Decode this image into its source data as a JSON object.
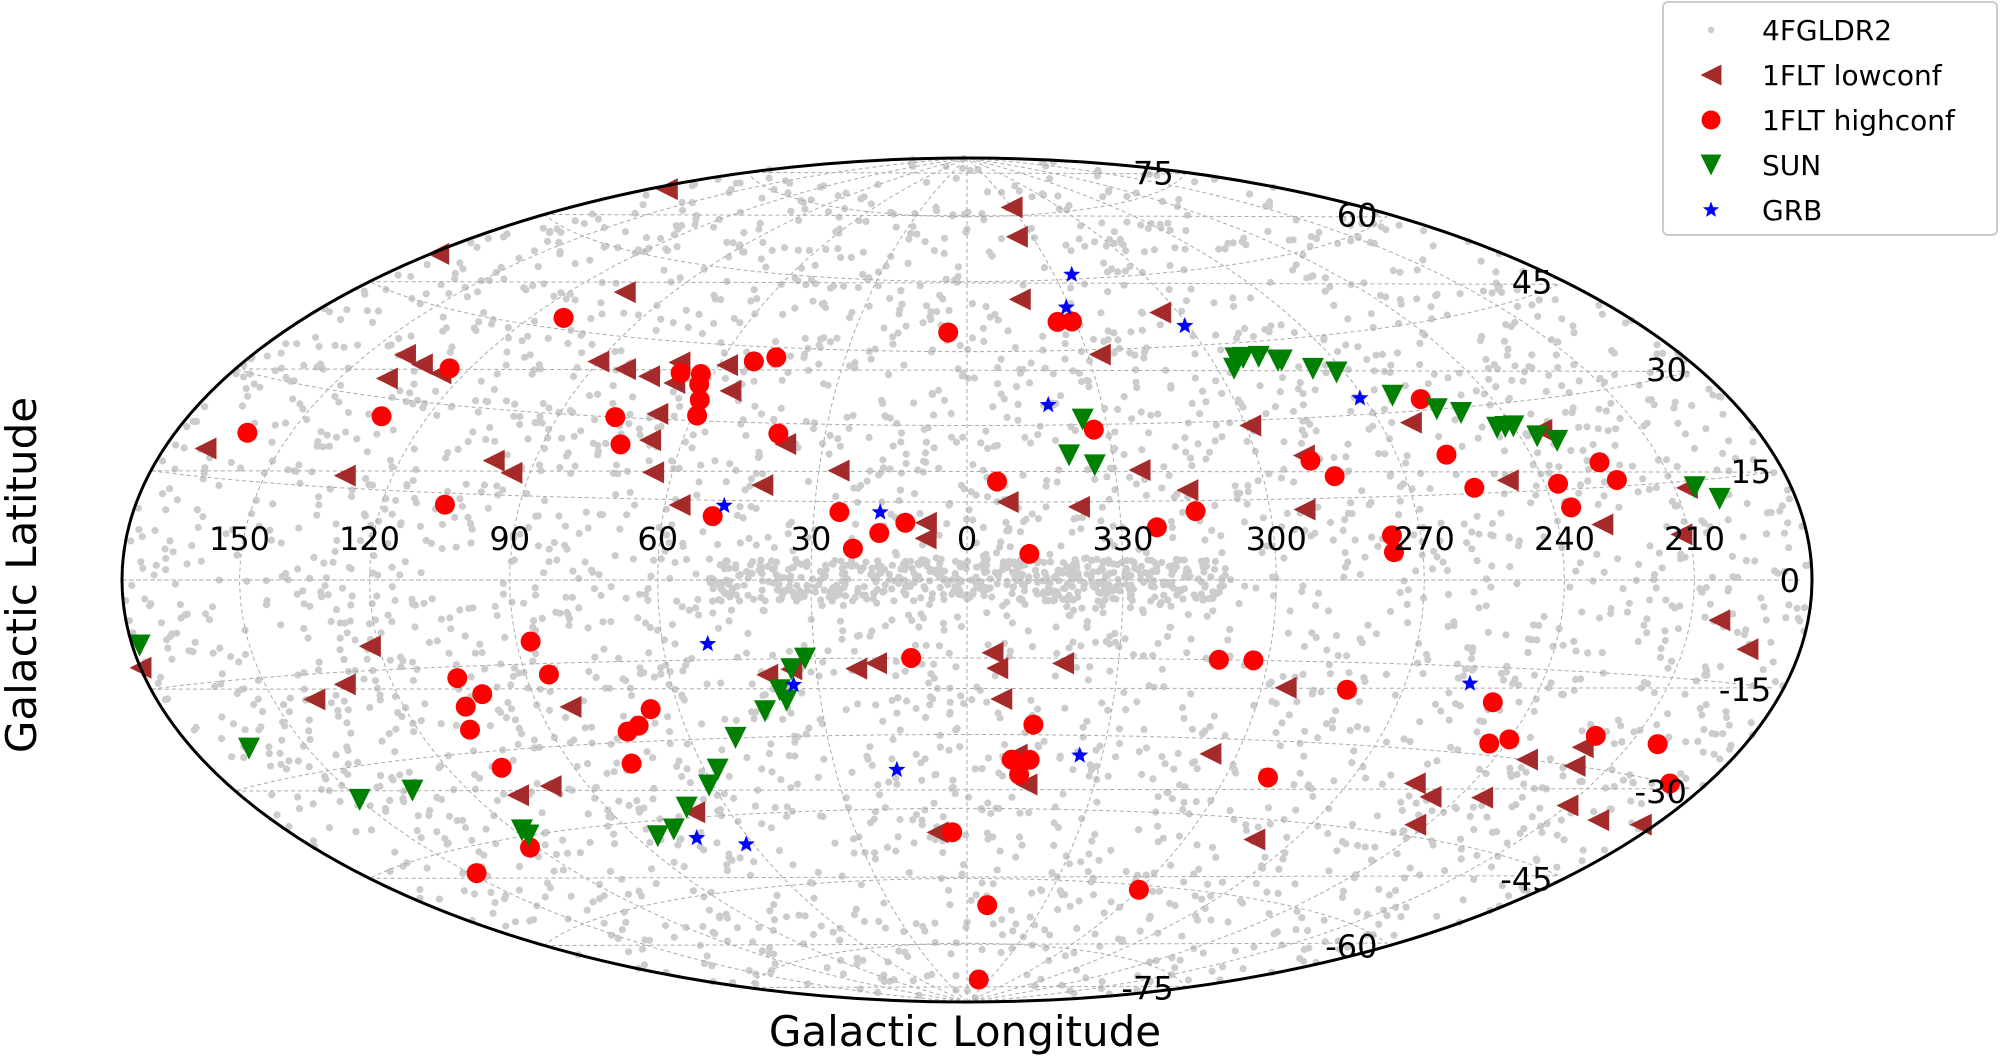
{
  "chart_data": {
    "type": "scatter",
    "projection": "aitoff-hammer",
    "xlabel": "Galactic Longitude",
    "ylabel": "Galactic Latitude",
    "x_ticks": [
      150,
      120,
      90,
      60,
      30,
      0,
      330,
      300,
      270,
      240,
      210
    ],
    "y_ticks": [
      -75,
      -60,
      -45,
      -30,
      -15,
      0,
      15,
      30,
      45,
      60,
      75
    ],
    "xlim": [
      180,
      -180
    ],
    "ylim": [
      -90,
      90
    ],
    "grid": true,
    "legend_position": "top-right",
    "series": [
      {
        "name": "4FGLDR2",
        "marker": "dot",
        "color": "#cccccc",
        "note_density": "uniform background",
        "points": [
          [
            174,
            71
          ],
          [
            150,
            50
          ],
          [
            131,
            43
          ],
          [
            123,
            32
          ],
          [
            110,
            21
          ],
          [
            100,
            29
          ],
          [
            90,
            8
          ],
          [
            79,
            25
          ],
          [
            68,
            31
          ],
          [
            58,
            15
          ],
          [
            44,
            7
          ],
          [
            26,
            16
          ],
          [
            20,
            19
          ],
          [
            14,
            12
          ],
          [
            5,
            4
          ],
          [
            349,
            31
          ],
          [
            334,
            2
          ],
          [
            311,
            14
          ],
          [
            301,
            26
          ],
          [
            286,
            5
          ],
          [
            273,
            19
          ],
          [
            256,
            33
          ],
          [
            237,
            13
          ],
          [
            223,
            35
          ],
          [
            170,
            -23
          ],
          [
            159,
            -5
          ],
          [
            141,
            -15
          ],
          [
            128,
            -21
          ],
          [
            111,
            -8
          ],
          [
            96,
            -30
          ],
          [
            81,
            -50
          ],
          [
            66,
            -35
          ],
          [
            57,
            -17
          ],
          [
            42,
            -26
          ],
          [
            33,
            -54
          ],
          [
            21,
            -40
          ],
          [
            7,
            -23
          ],
          [
            352,
            -45
          ],
          [
            340,
            -13
          ],
          [
            322,
            -33
          ],
          [
            305,
            -58
          ],
          [
            289,
            -21
          ],
          [
            276,
            -40
          ],
          [
            263,
            -8
          ],
          [
            249,
            -53
          ],
          [
            238,
            -18
          ],
          [
            224,
            -36
          ],
          [
            203,
            -13
          ],
          [
            195,
            -52
          ],
          [
            183,
            -20
          ],
          [
            60,
            -70
          ],
          [
            120,
            -65
          ],
          [
            300,
            -65
          ],
          [
            0,
            -70
          ],
          [
            0,
            72
          ],
          [
            240,
            72
          ]
        ]
      },
      {
        "name": "1FLT lowconf",
        "marker": "triangle-left",
        "color": "#a52a2a",
        "points": [
          [
            175,
            69
          ],
          [
            133,
            36
          ],
          [
            178,
            51
          ],
          [
            131,
            17
          ],
          [
            169,
            19
          ],
          [
            140,
            37
          ],
          [
            138,
            33
          ],
          [
            126,
            35
          ],
          [
            99,
            21
          ],
          [
            94,
            19
          ],
          [
            104,
            53
          ],
          [
            90,
            40
          ],
          [
            68,
            31
          ],
          [
            82,
            39
          ],
          [
            70,
            41
          ],
          [
            75,
            38
          ],
          [
            68,
            37
          ],
          [
            58,
            41
          ],
          [
            54,
            36
          ],
          [
            64,
            20
          ],
          [
            67,
            26
          ],
          [
            57,
            14
          ],
          [
            41,
            18
          ],
          [
            38,
            26
          ],
          [
            26,
            21
          ],
          [
            8,
            11
          ],
          [
            8,
            8
          ],
          [
            352,
            15
          ],
          [
            344,
            56
          ],
          [
            338,
            14
          ],
          [
            325,
            21
          ],
          [
            327,
            44
          ],
          [
            330,
            77
          ],
          [
            337,
            70
          ],
          [
            316,
            17
          ],
          [
            305,
            52
          ],
          [
            299,
            29
          ],
          [
            290,
            23
          ],
          [
            293,
            13
          ],
          [
            263,
            28
          ],
          [
            248,
            17
          ],
          [
            234,
            25
          ],
          [
            230,
            9
          ],
          [
            212,
            7
          ],
          [
            207,
            14
          ],
          [
            203,
            -6
          ],
          [
            221,
            -27
          ],
          [
            194,
            -10
          ],
          [
            180,
            -12
          ],
          [
            184,
            -36
          ],
          [
            140,
            -19
          ],
          [
            131,
            -17
          ],
          [
            122,
            -11
          ],
          [
            109,
            -38
          ],
          [
            99,
            -37
          ],
          [
            83,
            -23
          ],
          [
            69,
            -44
          ],
          [
            40,
            -18
          ],
          [
            35,
            -17
          ],
          [
            22,
            -17
          ],
          [
            18,
            -16
          ],
          [
            8,
            -50
          ],
          [
            354,
            -17
          ],
          [
            355,
            -14
          ],
          [
            353,
            -23
          ],
          [
            349,
            -34
          ],
          [
            346,
            -40
          ],
          [
            341,
            -16
          ],
          [
            306,
            -33
          ],
          [
            295,
            -20
          ],
          [
            281,
            -49
          ],
          [
            243,
            -43
          ],
          [
            254,
            -36
          ],
          [
            247,
            -38
          ],
          [
            232,
            -30
          ],
          [
            234,
            -37
          ],
          [
            219,
            -30
          ],
          [
            210,
            -36
          ],
          [
            197,
            -37
          ]
        ]
      },
      {
        "name": "1FLT highconf",
        "marker": "circle",
        "color": "#ff0000",
        "points": [
          [
            161,
            22
          ],
          [
            131,
            27
          ],
          [
            125,
            36
          ],
          [
            111,
            47
          ],
          [
            106,
            13
          ],
          [
            105,
            -17
          ],
          [
            106,
            -22
          ],
          [
            108,
            -26
          ],
          [
            107,
            -33
          ],
          [
            101,
            -20
          ],
          [
            76,
            -34
          ],
          [
            87,
            -11
          ],
          [
            85,
            -17
          ],
          [
            77,
            30
          ],
          [
            73,
            25
          ],
          [
            68,
            39
          ],
          [
            73,
            -28
          ],
          [
            70,
            -27
          ],
          [
            66,
            -24
          ],
          [
            63,
            39
          ],
          [
            59,
            31
          ],
          [
            62,
            37
          ],
          [
            60,
            34
          ],
          [
            52,
            42
          ],
          [
            50,
            12
          ],
          [
            47,
            43
          ],
          [
            40,
            28
          ],
          [
            25,
            13
          ],
          [
            22,
            6
          ],
          [
            17,
            9
          ],
          [
            12,
            11
          ],
          [
            11,
            -15
          ],
          [
            5,
            49
          ],
          [
            4,
            -50
          ],
          [
            354,
            19
          ],
          [
            348,
            5
          ],
          [
            352,
            -66
          ],
          [
            350,
            -35
          ],
          [
            348,
            -38
          ],
          [
            346,
            -35
          ],
          [
            346,
            -28
          ],
          [
            344,
            -84
          ],
          [
            335,
            51
          ],
          [
            331,
            51
          ],
          [
            333,
            29
          ],
          [
            323,
            10
          ],
          [
            315,
            13
          ],
          [
            310,
            -15
          ],
          [
            303,
            -15
          ],
          [
            300,
            -61
          ],
          [
            289,
            22
          ],
          [
            290,
            -37
          ],
          [
            276,
            5
          ],
          [
            276,
            8
          ],
          [
            285,
            19
          ],
          [
            282,
            -20
          ],
          [
            256,
            16
          ],
          [
            259,
            22
          ],
          [
            257,
            32
          ],
          [
            249,
            -21
          ],
          [
            244,
            -28
          ],
          [
            240,
            -27
          ],
          [
            236,
            12
          ],
          [
            237,
            16
          ],
          [
            225,
            19
          ],
          [
            223,
            16
          ],
          [
            220,
            -25
          ],
          [
            203,
            -25
          ],
          [
            190,
            -30
          ],
          [
            148,
            -49
          ],
          [
            122,
            -47
          ]
        ]
      },
      {
        "name": "SUN",
        "marker": "triangle-down",
        "color": "#008000",
        "points": [
          [
            178,
            -9
          ],
          [
            165,
            -25
          ],
          [
            150,
            -35
          ],
          [
            134,
            -35
          ],
          [
            118,
            -44
          ],
          [
            118,
            -45
          ],
          [
            84,
            -48
          ],
          [
            78,
            -47
          ],
          [
            70,
            -43
          ],
          [
            61,
            -39
          ],
          [
            57,
            -36
          ],
          [
            50,
            -30
          ],
          [
            42,
            -25
          ],
          [
            38,
            -21
          ],
          [
            37,
            -23
          ],
          [
            35,
            -17
          ],
          [
            32,
            -15
          ],
          [
            339,
            24
          ],
          [
            334,
            22
          ],
          [
            335,
            31
          ],
          [
            296,
            40
          ],
          [
            294,
            42
          ],
          [
            292,
            42
          ],
          [
            288,
            42
          ],
          [
            284,
            41
          ],
          [
            283,
            41
          ],
          [
            277,
            39
          ],
          [
            272,
            38
          ],
          [
            263,
            33
          ],
          [
            255,
            30
          ],
          [
            250,
            29
          ],
          [
            244,
            26
          ],
          [
            242,
            26
          ],
          [
            240,
            26
          ],
          [
            236,
            24
          ],
          [
            232,
            23
          ],
          [
            205,
            14
          ],
          [
            200,
            12
          ]
        ]
      },
      {
        "name": "GRB",
        "marker": "star",
        "color": "#0000ff",
        "points": [
          [
            331,
            54
          ],
          [
            324,
            61
          ],
          [
            301,
            49
          ],
          [
            271,
            33
          ],
          [
            342,
            34
          ],
          [
            48,
            14
          ],
          [
            17,
            13
          ],
          [
            51,
            -12
          ],
          [
            35,
            -20
          ],
          [
            16,
            -37
          ],
          [
            335,
            -34
          ],
          [
            74,
            -49
          ],
          [
            62,
            -51
          ],
          [
            256,
            -18
          ]
        ]
      }
    ]
  }
}
